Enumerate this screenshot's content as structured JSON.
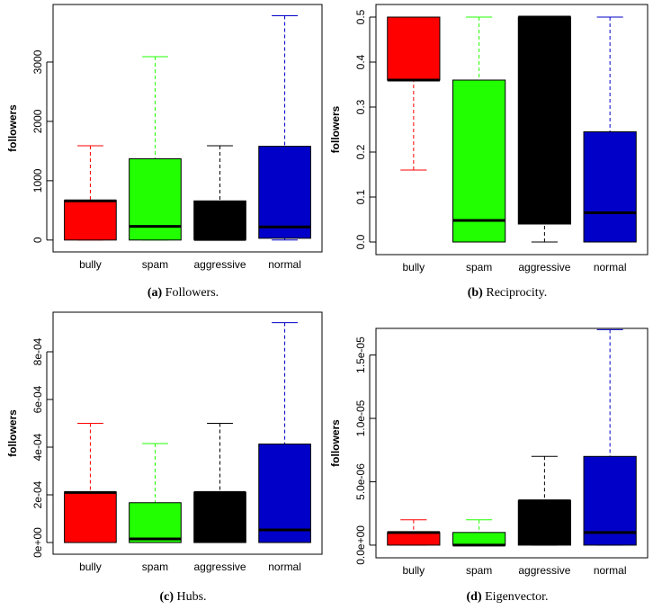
{
  "chart_data": [
    {
      "type": "box",
      "label": "(a)",
      "caption": "Followers.",
      "y_label": "followers",
      "categories": [
        "bully",
        "spam",
        "aggressive",
        "normal"
      ],
      "colors": [
        "#ff0000",
        "#22ff00",
        "#000000",
        "#0000c8"
      ],
      "min": [
        0,
        0,
        0,
        0
      ],
      "q1": [
        0,
        0,
        10,
        30
      ],
      "median": [
        660,
        230,
        10,
        220
      ],
      "q3": [
        670,
        1370,
        660,
        1580
      ],
      "max": [
        1590,
        3090,
        1590,
        3780
      ],
      "ylim": [
        -200,
        3970
      ],
      "yticks": [
        0,
        1000,
        2000,
        3000
      ]
    },
    {
      "type": "box",
      "label": "(b)",
      "caption": "Reciprocity.",
      "y_label": "followers",
      "categories": [
        "bully",
        "spam",
        "aggressive",
        "normal"
      ],
      "colors": [
        "#ff0000",
        "#22ff00",
        "#000000",
        "#0000c8"
      ],
      "min": [
        0.16,
        0,
        0,
        0
      ],
      "q1": [
        0.36,
        0,
        0.04,
        0
      ],
      "median": [
        0.36,
        0.048,
        0.5,
        0.065
      ],
      "q3": [
        0.5,
        0.36,
        0.5,
        0.245
      ],
      "max": [
        0.5,
        0.5,
        0.5,
        0.5
      ],
      "ylim": [
        -0.028,
        0.528
      ],
      "yticks": [
        {
          "value": 0,
          "label": "0.0"
        },
        0.1,
        0.2,
        0.3,
        0.4,
        0.5
      ]
    },
    {
      "type": "box",
      "label": "(c)",
      "caption": "Hubs.",
      "y_label": "followers",
      "categories": [
        "bully",
        "spam",
        "aggressive",
        "normal"
      ],
      "colors": [
        "#ff0000",
        "#22ff00",
        "#000000",
        "#0000c8"
      ],
      "min": [
        0,
        0,
        0,
        0
      ],
      "q1": [
        0,
        0,
        0,
        0
      ],
      "median": [
        0.00021,
        1.5e-05,
        0.00021,
        5.3e-05
      ],
      "q3": [
        0.000212,
        0.000167,
        0.00021,
        0.000413
      ],
      "max": [
        0.0005,
        0.000415,
        0.0005,
        0.000922
      ],
      "ylim": [
        -4.9e-05,
        0.000966
      ],
      "yticks": [
        {
          "value": 0,
          "label": "0e+00"
        },
        {
          "value": 0.0002,
          "label": "2e-04"
        },
        {
          "value": 0.0004,
          "label": "4e-04"
        },
        {
          "value": 0.0006,
          "label": "6e-04"
        },
        {
          "value": 0.0008,
          "label": "8e-04"
        }
      ]
    },
    {
      "type": "box",
      "label": "(d)",
      "caption": "Eigenvector.",
      "y_label": "followers",
      "categories": [
        "bully",
        "spam",
        "aggressive",
        "normal"
      ],
      "colors": [
        "#ff0000",
        "#22ff00",
        "#000000",
        "#0000c8"
      ],
      "min": [
        0,
        0,
        0,
        0
      ],
      "q1": [
        0,
        0,
        0,
        0
      ],
      "median": [
        1e-06,
        0,
        3.5e-06,
        1e-06
      ],
      "q3": [
        1e-06,
        1e-06,
        3.5e-06,
        7e-06
      ],
      "max": [
        2e-06,
        2e-06,
        7e-06,
        1.7e-05
      ],
      "ylim": [
        -1e-06,
        1.71e-05
      ],
      "yticks": [
        {
          "value": 0,
          "label": "0.0e+00"
        },
        {
          "value": 5e-06,
          "label": "5.0e-06"
        },
        {
          "value": 1e-05,
          "label": "1.0e-05"
        },
        {
          "value": 1.5e-05,
          "label": "1.5e-05"
        }
      ]
    }
  ]
}
